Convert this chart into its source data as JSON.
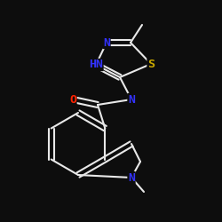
{
  "bg_color": "#0d0d0d",
  "bond_color": "#e8e8e8",
  "atom_colors": {
    "N": "#3333ff",
    "S": "#ccaa00",
    "O": "#ff2200",
    "C": "#e8e8e8"
  },
  "bond_width": 1.5,
  "dbo": 0.012,
  "fs": 9.5
}
